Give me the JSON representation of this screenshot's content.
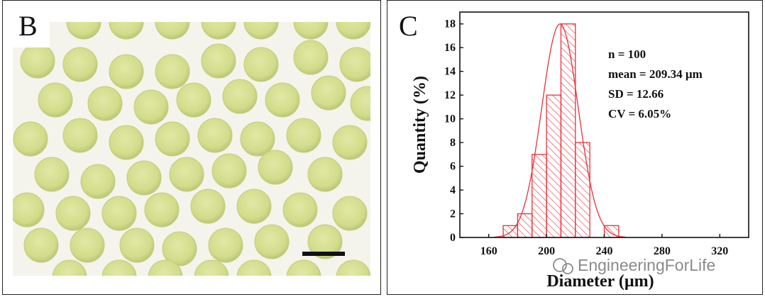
{
  "panel_b": {
    "letter": "B"
  },
  "panel_c": {
    "letter": "C",
    "watermark": "EngineeringForLife"
  },
  "chart_data": {
    "type": "bar",
    "xlabel": "Diameter (µm)",
    "ylabel": "Quantity (%)",
    "xlim": [
      140,
      340
    ],
    "ylim": [
      0,
      19
    ],
    "xticks": [
      160,
      200,
      240,
      280,
      320
    ],
    "yticks": [
      0,
      2,
      4,
      6,
      8,
      10,
      12,
      14,
      16,
      18
    ],
    "bins": [
      {
        "start": 170,
        "end": 180,
        "value": 1
      },
      {
        "start": 180,
        "end": 190,
        "value": 2
      },
      {
        "start": 190,
        "end": 200,
        "value": 7
      },
      {
        "start": 200,
        "end": 210,
        "value": 12
      },
      {
        "start": 210,
        "end": 220,
        "value": 18
      },
      {
        "start": 220,
        "end": 230,
        "value": 8
      },
      {
        "start": 230,
        "end": 240,
        "value": 0
      },
      {
        "start": 240,
        "end": 250,
        "value": 1
      }
    ],
    "fit": {
      "type": "normal",
      "mean": 209.34,
      "sd": 12.66
    },
    "annotations": [
      "n = 100",
      "mean = 209.34 µm",
      "SD = 12.66",
      "CV = 6.05%"
    ],
    "colors": {
      "bars": "#e8313a",
      "axis": "#111111"
    }
  }
}
